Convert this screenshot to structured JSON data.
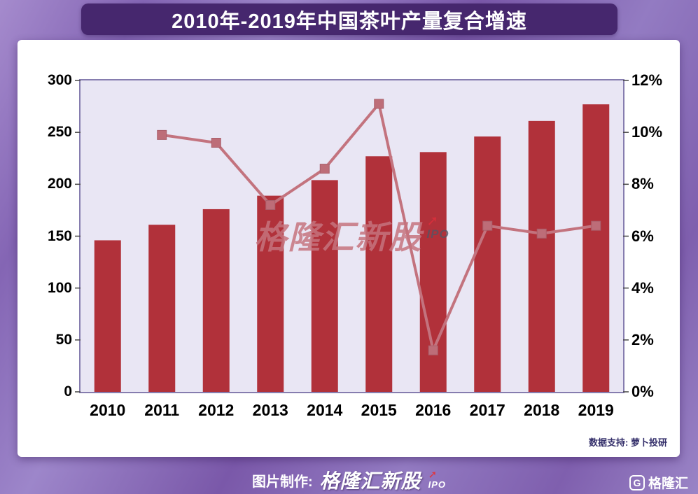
{
  "title": "2010年-2019年中国茶叶产量复合增速",
  "chart_data": {
    "type": "bar",
    "combo": "bar+line",
    "categories": [
      "2010",
      "2011",
      "2012",
      "2013",
      "2014",
      "2015",
      "2016",
      "2017",
      "2018",
      "2019"
    ],
    "series": [
      {
        "name": "bars",
        "type": "bar",
        "axis": "left",
        "values": [
          146,
          161,
          176,
          189,
          204,
          227,
          231,
          246,
          261,
          277
        ]
      },
      {
        "name": "growth-line",
        "type": "line",
        "axis": "right",
        "values": [
          null,
          9.9,
          9.6,
          7.2,
          8.6,
          11.1,
          1.6,
          6.4,
          6.1,
          6.4
        ]
      }
    ],
    "left_axis": {
      "min": 0,
      "max": 300,
      "ticks": [
        "300",
        "250",
        "200",
        "150",
        "100",
        "50",
        "0"
      ]
    },
    "right_axis": {
      "min": 0,
      "max": 12,
      "ticks": [
        "12%",
        "10%",
        "8%",
        "6%",
        "4%",
        "2%",
        "0%"
      ]
    },
    "grid": false,
    "legend": "none",
    "colors": {
      "bar": "#b1313a",
      "line": "#c3737e",
      "marker": "#bd6d78",
      "marker_border": "#a95f6a",
      "plot_bg": "#e9e6f4",
      "plot_border": "#867daf"
    }
  },
  "watermark": {
    "text": "格隆汇新股",
    "arrow": "➚",
    "sub": "IPO"
  },
  "source_note": "数据支持: 萝卜投研",
  "footer": {
    "credit_label": "图片制作:",
    "brand": "格隆汇新股",
    "arrow": "➚",
    "brand_sub": "IPO",
    "logo_letter": "G",
    "logo_text": "格隆汇"
  }
}
